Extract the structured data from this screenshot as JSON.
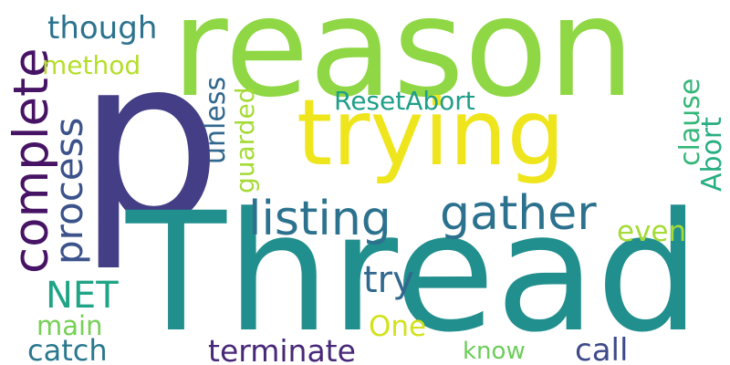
{
  "words": {
    "reason": {
      "text": "reason",
      "color": "#8fd744"
    },
    "p": {
      "text": "p",
      "color": "#433e85"
    },
    "thread": {
      "text": "Thread",
      "color": "#218f8d"
    },
    "trying": {
      "text": "trying",
      "color": "#efe51c"
    },
    "complete": {
      "text": "complete",
      "color": "#471365"
    },
    "process": {
      "text": "process",
      "color": "#3b528b"
    },
    "listing": {
      "text": "listing",
      "color": "#2c728e"
    },
    "gather": {
      "text": "gather",
      "color": "#2c728e"
    },
    "though": {
      "text": "though",
      "color": "#2c728e"
    },
    "method": {
      "text": "method",
      "color": "#b5de2b"
    },
    "unless": {
      "text": "unless",
      "color": "#31688e"
    },
    "guarded": {
      "text": "guarded",
      "color": "#a5db36"
    },
    "resetabort": {
      "text": "ResetAbort",
      "color": "#1f9e89"
    },
    "clause": {
      "text": "clause",
      "color": "#35b779"
    },
    "abort": {
      "text": "Abort",
      "color": "#28ae80"
    },
    "even": {
      "text": "even",
      "color": "#a5db36"
    },
    "net": {
      "text": "NET",
      "color": "#20a486"
    },
    "try": {
      "text": "try",
      "color": "#31688e"
    },
    "main": {
      "text": "main",
      "color": "#75d054"
    },
    "catch": {
      "text": "catch",
      "color": "#2a788e"
    },
    "terminate": {
      "text": "terminate",
      "color": "#482878"
    },
    "one": {
      "text": "One",
      "color": "#d2e21b"
    },
    "know": {
      "text": "know",
      "color": "#6ccd5a"
    },
    "call": {
      "text": "call",
      "color": "#3e4a89"
    }
  }
}
